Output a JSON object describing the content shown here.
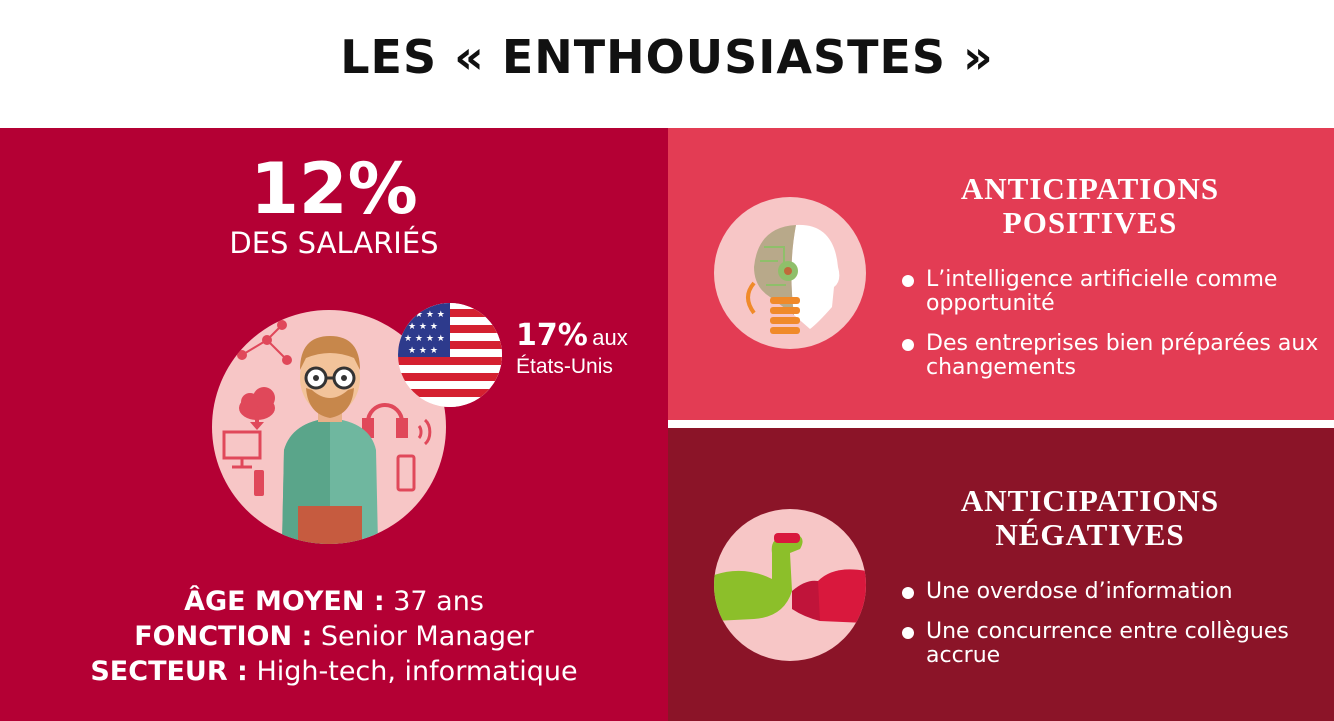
{
  "title": "LES « ENTHOUSIASTES »",
  "summary": {
    "percent": "12%",
    "label": "DES SALARIÉS"
  },
  "us_stat": {
    "percent": "17%",
    "suffix": "aux",
    "country": "États-Unis"
  },
  "profile": {
    "age_label": "ÂGE MOYEN :",
    "age_value": "37 ans",
    "function_label": "FONCTION :",
    "function_value": "Senior Manager",
    "sector_label": "SECTEUR :",
    "sector_value": "High-tech, informatique"
  },
  "positive": {
    "title_line1": "ANTICIPATIONS",
    "title_line2": "POSITIVES",
    "items": [
      "L’intelligence artificielle comme opportunité",
      "Des entreprises bien préparées aux changements"
    ]
  },
  "negative": {
    "title_line1": "ANTICIPATIONS",
    "title_line2": "NÉGATIVES",
    "items": [
      "Une overdose d’information",
      "Une concurrence entre collègues accrue"
    ]
  },
  "colors": {
    "left_panel": "#b40034",
    "positive_panel": "#e33c54",
    "negative_panel": "#8b1428",
    "circle_bg": "#f7c6c6"
  },
  "icons": [
    "man-illustration",
    "us-flag-icon",
    "robot-head-icon",
    "flexed-arm-icon"
  ]
}
